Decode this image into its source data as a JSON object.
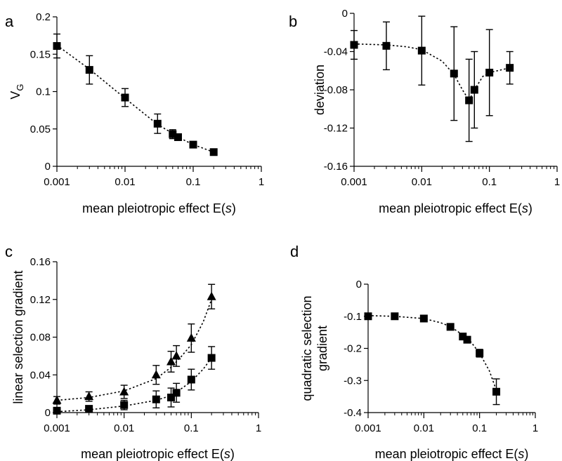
{
  "chart_data": [
    {
      "panel": "a",
      "type": "scatter",
      "xlabel": {
        "main": "mean pleiotropic effect E(",
        "italic": "s",
        "end": ")"
      },
      "ylabel": {
        "main": "V",
        "sub": "G"
      },
      "xscale": "log",
      "xlim": [
        0.001,
        1
      ],
      "ylim": [
        0,
        0.2
      ],
      "xticks": [
        {
          "v": 0.001,
          "label": "0.001"
        },
        {
          "v": 0.01,
          "label": "0.01"
        },
        {
          "v": 0.1,
          "label": "0.1"
        },
        {
          "v": 1,
          "label": "1"
        }
      ],
      "yticks": [
        {
          "v": 0,
          "label": "0"
        },
        {
          "v": 0.05,
          "label": "0.05"
        },
        {
          "v": 0.1,
          "label": "0.1"
        },
        {
          "v": 0.15,
          "label": "0.15"
        },
        {
          "v": 0.2,
          "label": "0.2"
        }
      ],
      "series": [
        {
          "marker": "square",
          "x": [
            0.001,
            0.003,
            0.01,
            0.03,
            0.05,
            0.06,
            0.1,
            0.2
          ],
          "y": [
            0.161,
            0.129,
            0.092,
            0.057,
            0.043,
            0.039,
            0.029,
            0.019
          ],
          "err": [
            0.016,
            0.019,
            0.012,
            0.013,
            0.006,
            0.004,
            0.002,
            0.002
          ],
          "fit": [
            [
              0.001,
              0.162
            ],
            [
              0.003,
              0.13
            ],
            [
              0.01,
              0.091
            ],
            [
              0.03,
              0.056
            ],
            [
              0.05,
              0.044
            ],
            [
              0.07,
              0.036
            ],
            [
              0.1,
              0.029
            ],
            [
              0.2,
              0.019
            ]
          ]
        }
      ]
    },
    {
      "panel": "b",
      "type": "scatter",
      "xlabel": {
        "main": "mean pleiotropic effect E(",
        "italic": "s",
        "end": ")"
      },
      "ylabel": {
        "main": "deviation"
      },
      "xscale": "log",
      "xlim": [
        0.001,
        1
      ],
      "ylim": [
        -0.16,
        0
      ],
      "xticks": [
        {
          "v": 0.001,
          "label": "0.001"
        },
        {
          "v": 0.01,
          "label": "0.01"
        },
        {
          "v": 0.1,
          "label": "0.1"
        },
        {
          "v": 1,
          "label": "1"
        }
      ],
      "yticks": [
        {
          "v": 0,
          "label": "0"
        },
        {
          "v": -0.04,
          "label": "-0.04"
        },
        {
          "v": -0.08,
          "label": "-0.08"
        },
        {
          "v": -0.12,
          "label": "-0.12"
        },
        {
          "v": -0.16,
          "label": "-0.16"
        }
      ],
      "series": [
        {
          "marker": "square",
          "x": [
            0.001,
            0.003,
            0.01,
            0.03,
            0.05,
            0.06,
            0.1,
            0.2
          ],
          "y": [
            -0.033,
            -0.034,
            -0.039,
            -0.063,
            -0.091,
            -0.08,
            -0.062,
            -0.057
          ],
          "err": [
            0.015,
            0.025,
            0.036,
            0.049,
            0.043,
            0.04,
            0.045,
            0.017
          ],
          "fit": [
            [
              0.001,
              -0.032
            ],
            [
              0.003,
              -0.033
            ],
            [
              0.006,
              -0.035
            ],
            [
              0.01,
              -0.038
            ],
            [
              0.02,
              -0.05
            ],
            [
              0.03,
              -0.064
            ],
            [
              0.04,
              -0.08
            ],
            [
              0.05,
              -0.091
            ],
            [
              0.06,
              -0.08
            ],
            [
              0.08,
              -0.066
            ],
            [
              0.1,
              -0.062
            ],
            [
              0.2,
              -0.057
            ]
          ]
        }
      ]
    },
    {
      "panel": "c",
      "type": "scatter",
      "xlabel": {
        "main": "mean pleiotropic effect E(",
        "italic": "s",
        "end": ")"
      },
      "ylabel": {
        "main": "linear selection gradient"
      },
      "xscale": "log",
      "xlim": [
        0.001,
        1
      ],
      "ylim": [
        0,
        0.16
      ],
      "xticks": [
        {
          "v": 0.001,
          "label": "0.001"
        },
        {
          "v": 0.01,
          "label": "0.01"
        },
        {
          "v": 0.1,
          "label": "0.1"
        },
        {
          "v": 1,
          "label": "1"
        }
      ],
      "yticks": [
        {
          "v": 0,
          "label": "0"
        },
        {
          "v": 0.04,
          "label": "0.04"
        },
        {
          "v": 0.08,
          "label": "0.08"
        },
        {
          "v": 0.12,
          "label": "0.12"
        },
        {
          "v": 0.16,
          "label": "0.16"
        }
      ],
      "series": [
        {
          "marker": "triangle",
          "x": [
            0.001,
            0.003,
            0.01,
            0.03,
            0.05,
            0.06,
            0.1,
            0.2
          ],
          "y": [
            0.013,
            0.017,
            0.022,
            0.04,
            0.054,
            0.06,
            0.079,
            0.123
          ],
          "err": [
            0.004,
            0.005,
            0.007,
            0.01,
            0.011,
            0.011,
            0.015,
            0.013
          ],
          "fit": [
            [
              0.001,
              0.013
            ],
            [
              0.003,
              0.016
            ],
            [
              0.01,
              0.023
            ],
            [
              0.03,
              0.036
            ],
            [
              0.05,
              0.048
            ],
            [
              0.07,
              0.059
            ],
            [
              0.1,
              0.072
            ],
            [
              0.15,
              0.096
            ],
            [
              0.2,
              0.12
            ]
          ]
        },
        {
          "marker": "square",
          "x": [
            0.001,
            0.003,
            0.01,
            0.03,
            0.05,
            0.06,
            0.1,
            0.2
          ],
          "y": [
            0.002,
            0.004,
            0.008,
            0.014,
            0.016,
            0.021,
            0.035,
            0.058
          ],
          "err": [
            0.002,
            0.003,
            0.005,
            0.009,
            0.01,
            0.01,
            0.011,
            0.012
          ],
          "fit": [
            [
              0.001,
              0.001
            ],
            [
              0.003,
              0.003
            ],
            [
              0.01,
              0.007
            ],
            [
              0.03,
              0.013
            ],
            [
              0.05,
              0.018
            ],
            [
              0.07,
              0.025
            ],
            [
              0.1,
              0.033
            ],
            [
              0.15,
              0.046
            ],
            [
              0.2,
              0.058
            ]
          ]
        }
      ]
    },
    {
      "panel": "d",
      "type": "scatter",
      "xlabel": {
        "main": "mean pleiotropic effect E(",
        "italic": "s",
        "end": ")"
      },
      "ylabel": {
        "lines": [
          "quadratic selection",
          "gradient"
        ]
      },
      "xscale": "log",
      "xlim": [
        0.001,
        1
      ],
      "ylim": [
        -0.4,
        0
      ],
      "xticks": [
        {
          "v": 0.001,
          "label": "0.001"
        },
        {
          "v": 0.01,
          "label": "0.01"
        },
        {
          "v": 0.1,
          "label": "0.1"
        },
        {
          "v": 1,
          "label": "1"
        }
      ],
      "yticks": [
        {
          "v": 0,
          "label": "0"
        },
        {
          "v": -0.1,
          "label": "-0.1"
        },
        {
          "v": -0.2,
          "label": "-0.2"
        },
        {
          "v": -0.3,
          "label": "-0.3"
        },
        {
          "v": -0.4,
          "label": "-0.4"
        }
      ],
      "series": [
        {
          "marker": "square",
          "x": [
            0.001,
            0.003,
            0.01,
            0.03,
            0.05,
            0.06,
            0.1,
            0.2
          ],
          "y": [
            -0.1,
            -0.1,
            -0.107,
            -0.133,
            -0.163,
            -0.173,
            -0.215,
            -0.335
          ],
          "err": [
            0.003,
            0.003,
            0.004,
            0.006,
            0.008,
            0.008,
            0.012,
            0.04
          ],
          "fit": [
            [
              0.001,
              -0.098
            ],
            [
              0.003,
              -0.1
            ],
            [
              0.01,
              -0.107
            ],
            [
              0.02,
              -0.12
            ],
            [
              0.03,
              -0.132
            ],
            [
              0.05,
              -0.158
            ],
            [
              0.07,
              -0.18
            ],
            [
              0.1,
              -0.215
            ],
            [
              0.15,
              -0.27
            ],
            [
              0.2,
              -0.33
            ]
          ]
        }
      ]
    }
  ]
}
